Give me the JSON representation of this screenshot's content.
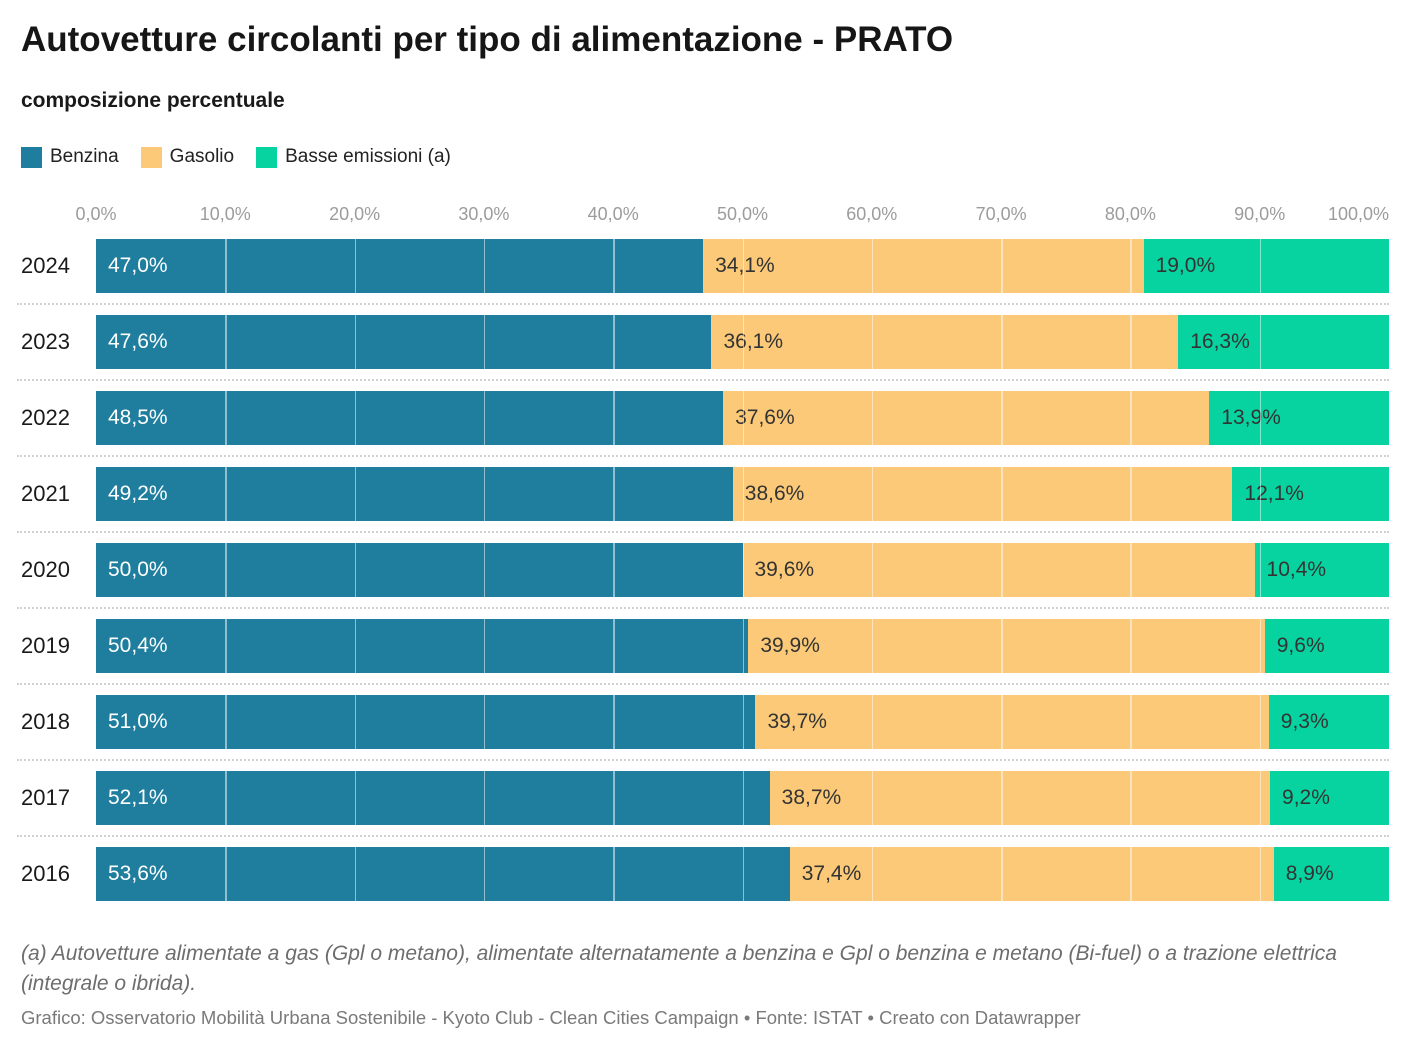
{
  "chart_data": {
    "type": "bar",
    "stacked": true,
    "orientation": "horizontal",
    "title": "Autovetture circolanti per tipo di alimentazione - PRATO",
    "subtitle": "composizione percentuale",
    "categories": [
      "2024",
      "2023",
      "2022",
      "2021",
      "2020",
      "2019",
      "2018",
      "2017",
      "2016"
    ],
    "series": [
      {
        "name": "Benzina",
        "color": "#1f7e9e",
        "label_color": "#ffffff",
        "values": [
          47.0,
          47.6,
          48.5,
          49.2,
          50.0,
          50.4,
          51.0,
          52.1,
          53.6
        ]
      },
      {
        "name": "Gasolio",
        "color": "#fbc977",
        "label_color": "#333333",
        "values": [
          34.1,
          36.1,
          37.6,
          38.6,
          39.6,
          39.9,
          39.7,
          38.7,
          37.4
        ]
      },
      {
        "name": "Basse emissioni (a)",
        "color": "#06d3a0",
        "label_color": "#333333",
        "values": [
          19.0,
          16.3,
          13.9,
          12.1,
          10.4,
          9.6,
          9.3,
          9.2,
          8.9
        ]
      }
    ],
    "x_ticks": [
      "0,0%",
      "10,0%",
      "20,0%",
      "30,0%",
      "40,0%",
      "50,0%",
      "60,0%",
      "70,0%",
      "80,0%",
      "90,0%",
      "100,0%"
    ],
    "xlim": [
      0,
      100
    ],
    "value_format": "percent, comma decimal, 1 dp, labels inside segments",
    "legend_position": "top-left",
    "grid": "vertical white lines every 10% inside bars, dotted gray separators between rows"
  },
  "footnote": "(a) Autovetture alimentate a gas (Gpl o metano), alimentate alternatamente a benzina e Gpl o benzina e metano (Bi-fuel) o a trazione elettrica (integrale o ibrida).",
  "footer": "Grafico: Osservatorio Mobilità Urbana Sostenibile - Kyoto Club - Clean Cities Campaign • Fonte: ISTAT • Creato con Datawrapper"
}
